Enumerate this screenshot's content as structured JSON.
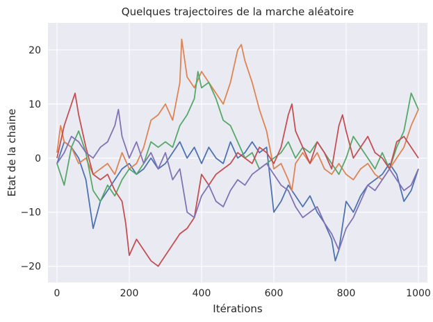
{
  "chart_data": {
    "type": "line",
    "title": "Quelques trajectoires de la marche aléatoire",
    "xlabel": "Itérations",
    "ylabel": "Etat de la chaine",
    "xlim": [
      -25,
      1025
    ],
    "ylim": [
      -23,
      25
    ],
    "xticks": [
      0,
      200,
      400,
      600,
      800,
      1000
    ],
    "xtick_labels": [
      "0",
      "200",
      "400",
      "600",
      "800",
      "1000"
    ],
    "yticks": [
      -20,
      -10,
      0,
      10,
      20
    ],
    "ytick_labels": [
      "−20",
      "−10",
      "0",
      "10",
      "20"
    ],
    "grid": true,
    "background": "#eaeaf2",
    "series": [
      {
        "color": "#4c72b0",
        "x": [
          0,
          20,
          40,
          60,
          80,
          100,
          120,
          140,
          160,
          180,
          200,
          220,
          240,
          260,
          280,
          300,
          320,
          340,
          360,
          380,
          400,
          420,
          440,
          460,
          480,
          500,
          520,
          540,
          560,
          580,
          600,
          620,
          640,
          660,
          680,
          700,
          720,
          740,
          760,
          770,
          780,
          800,
          820,
          840,
          860,
          880,
          900,
          920,
          940,
          960,
          980,
          1000
        ],
        "values": [
          -1,
          3,
          2,
          0,
          -4,
          -13,
          -8,
          -6,
          -4,
          -2,
          -1,
          -3,
          -2,
          0,
          -2,
          -1,
          1,
          3,
          0,
          2,
          -1,
          2,
          0,
          -1,
          3,
          0,
          1,
          3,
          1,
          2,
          -10,
          -8,
          -5,
          -7,
          -9,
          -7,
          -10,
          -12,
          -15,
          -19,
          -17,
          -8,
          -10,
          -7,
          -5,
          -4,
          -3,
          -1,
          -3,
          -8,
          -6,
          -2
        ]
      },
      {
        "color": "#dd8452",
        "x": [
          0,
          10,
          20,
          40,
          60,
          80,
          100,
          120,
          140,
          160,
          180,
          200,
          220,
          240,
          260,
          280,
          300,
          320,
          340,
          345,
          360,
          380,
          400,
          420,
          440,
          460,
          480,
          500,
          510,
          520,
          540,
          560,
          580,
          600,
          620,
          640,
          650,
          660,
          680,
          700,
          720,
          740,
          760,
          780,
          800,
          820,
          840,
          860,
          880,
          900,
          920,
          940,
          960,
          980,
          1000
        ],
        "values": [
          1,
          6,
          3,
          2,
          -1,
          0,
          -3,
          -2,
          -1,
          -3,
          1,
          -2,
          -1,
          2,
          7,
          8,
          10,
          7,
          14,
          22,
          15,
          13,
          16,
          14,
          12,
          10,
          14,
          20,
          21,
          18,
          14,
          9,
          5,
          -2,
          -1,
          -4,
          -6,
          -1,
          1,
          -1,
          1,
          -2,
          -3,
          -1,
          -3,
          -4,
          -2,
          -1,
          -3,
          -4,
          -2,
          0,
          2,
          6,
          9
        ]
      },
      {
        "color": "#55a868",
        "x": [
          0,
          20,
          40,
          60,
          80,
          100,
          120,
          140,
          160,
          180,
          200,
          220,
          240,
          260,
          280,
          300,
          320,
          340,
          360,
          380,
          390,
          400,
          420,
          440,
          460,
          480,
          500,
          520,
          540,
          560,
          580,
          600,
          620,
          640,
          660,
          680,
          700,
          720,
          740,
          760,
          780,
          800,
          820,
          840,
          860,
          880,
          900,
          920,
          940,
          960,
          980,
          1000
        ],
        "values": [
          -1,
          -5,
          2,
          5,
          1,
          -6,
          -8,
          -5,
          -7,
          -4,
          -2,
          -3,
          -1,
          3,
          2,
          3,
          2,
          6,
          8,
          11,
          16,
          13,
          14,
          11,
          7,
          6,
          3,
          0,
          1,
          -2,
          -1,
          0,
          1,
          3,
          0,
          2,
          1,
          3,
          1,
          -1,
          -3,
          0,
          4,
          2,
          0,
          -2,
          1,
          -2,
          2,
          5,
          12,
          9
        ]
      },
      {
        "color": "#c44e52",
        "x": [
          0,
          20,
          40,
          50,
          60,
          80,
          100,
          120,
          140,
          160,
          180,
          190,
          200,
          220,
          240,
          260,
          280,
          300,
          320,
          340,
          360,
          380,
          400,
          420,
          440,
          460,
          480,
          500,
          520,
          540,
          560,
          580,
          600,
          620,
          640,
          650,
          660,
          680,
          700,
          720,
          740,
          760,
          780,
          790,
          800,
          820,
          840,
          860,
          880,
          900,
          920,
          940,
          960,
          980,
          1000
        ],
        "values": [
          0,
          6,
          10,
          12,
          8,
          2,
          -3,
          -4,
          -3,
          -6,
          -8,
          -12,
          -18,
          -15,
          -17,
          -19,
          -20,
          -18,
          -16,
          -14,
          -13,
          -11,
          -3,
          -5,
          -3,
          -2,
          -1,
          1,
          0,
          -1,
          2,
          1,
          -1,
          2,
          8,
          10,
          5,
          2,
          -1,
          3,
          1,
          -2,
          6,
          8,
          5,
          0,
          2,
          4,
          1,
          0,
          -2,
          3,
          4,
          2,
          0
        ]
      },
      {
        "color": "#8172b3",
        "x": [
          0,
          20,
          40,
          60,
          80,
          100,
          120,
          140,
          160,
          170,
          180,
          200,
          220,
          240,
          260,
          280,
          300,
          320,
          340,
          360,
          380,
          400,
          420,
          440,
          460,
          480,
          500,
          520,
          540,
          560,
          580,
          600,
          620,
          640,
          660,
          680,
          700,
          720,
          740,
          760,
          780,
          800,
          820,
          840,
          860,
          880,
          900,
          920,
          940,
          960,
          980,
          1000
        ],
        "values": [
          -1,
          1,
          4,
          3,
          1,
          0,
          2,
          3,
          6,
          9,
          4,
          0,
          3,
          -1,
          1,
          -2,
          1,
          -4,
          -2,
          -10,
          -11,
          -7,
          -5,
          -8,
          -9,
          -6,
          -4,
          -5,
          -3,
          -2,
          -1,
          -3,
          -5,
          -6,
          -9,
          -11,
          -10,
          -9,
          -12,
          -14,
          -17,
          -13,
          -11,
          -8,
          -5,
          -6,
          -4,
          -2,
          -4,
          -6,
          -5,
          -2
        ]
      }
    ]
  }
}
